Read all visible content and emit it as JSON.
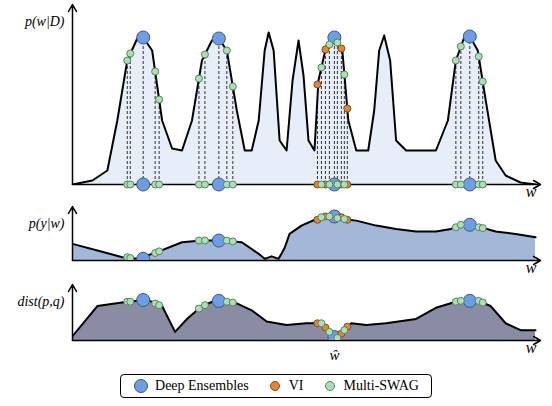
{
  "chart_data": [
    {
      "type": "area",
      "ylabel": "p(w|D)",
      "xlabel": "w",
      "xlim": [
        0,
        470
      ],
      "ylim": [
        0,
        180
      ],
      "tick_labels": false,
      "series": [
        {
          "type": "area",
          "color": "#e8eef9",
          "x": [
            0,
            20,
            35,
            45,
            55,
            65,
            71,
            80,
            90,
            100,
            110,
            120,
            130,
            140,
            147,
            155,
            165,
            173,
            180,
            187,
            193,
            197,
            202,
            208,
            215,
            221,
            227,
            232,
            237,
            243,
            247,
            255,
            263,
            271,
            277,
            285,
            297,
            303,
            308,
            313,
            319,
            325,
            335,
            345,
            365,
            377,
            385,
            393,
            399,
            407,
            415,
            425,
            435,
            450,
            465
          ],
          "values": [
            0,
            4,
            14,
            64,
            124,
            146,
            147,
            134,
            64,
            36,
            34,
            64,
            124,
            144,
            146,
            134,
            74,
            34,
            34,
            64,
            134,
            152,
            134,
            44,
            34,
            104,
            144,
            109,
            44,
            34,
            104,
            139,
            147,
            134,
            64,
            34,
            34,
            74,
            134,
            149,
            124,
            44,
            34,
            34,
            34,
            64,
            124,
            146,
            148,
            134,
            84,
            24,
            9,
            2,
            0
          ]
        },
        {
          "name": "Deep Ensembles",
          "type": "scatter",
          "marker": "circle",
          "color": "#6b9de8",
          "x": [
            71,
            147,
            263,
            399
          ],
          "values": [
            147,
            146,
            147,
            148
          ]
        },
        {
          "name": "VI",
          "type": "scatter",
          "marker": "circle",
          "color": "#e8862e",
          "x": [
            246,
            254,
            270,
            276
          ],
          "values": [
            100,
            135,
            136,
            76
          ]
        },
        {
          "name": "Multi-SWAG",
          "type": "scatter",
          "marker": "circle",
          "color": "#a6e3b0",
          "x": [
            55,
            58,
            83,
            87,
            127,
            133,
            155,
            161,
            250,
            258,
            266,
            273,
            385,
            390,
            408,
            412
          ],
          "values": [
            124,
            131,
            113,
            85,
            106,
            130,
            134,
            98,
            117,
            140,
            142,
            110,
            124,
            138,
            128,
            103
          ]
        }
      ]
    },
    {
      "type": "area",
      "ylabel": "p(y|w)",
      "xlabel": "w",
      "xlim": [
        0,
        470
      ],
      "ylim": [
        0,
        65
      ],
      "tick_labels": false,
      "series": [
        {
          "type": "area",
          "color": "#a3b7d8",
          "x": [
            0,
            25,
            50,
            65,
            85,
            110,
            130,
            150,
            170,
            187,
            193,
            200,
            207,
            213,
            218,
            230,
            245,
            260,
            270,
            285,
            305,
            325,
            345,
            365,
            380,
            395,
            410,
            425,
            445,
            465
          ],
          "values": [
            20,
            12,
            4,
            2,
            10,
            22,
            24,
            24,
            22,
            8,
            2,
            5,
            2,
            15,
            32,
            42,
            50,
            53,
            50,
            48,
            42,
            38,
            35,
            35,
            38,
            45,
            40,
            35,
            32,
            28
          ]
        },
        {
          "name": "Deep Ensembles",
          "type": "scatter",
          "marker": "circle",
          "color": "#6b9de8",
          "x": [
            71,
            147,
            263,
            399
          ],
          "values": [
            2,
            24,
            53,
            43
          ]
        },
        {
          "name": "VI",
          "type": "scatter",
          "marker": "circle",
          "color": "#e8862e",
          "x": [
            246,
            254,
            270,
            276
          ],
          "values": [
            49,
            53,
            52,
            49
          ]
        },
        {
          "name": "Multi-SWAG",
          "type": "scatter",
          "marker": "circle",
          "color": "#a6e3b0",
          "x": [
            55,
            58,
            83,
            87,
            127,
            133,
            155,
            161,
            250,
            258,
            266,
            273,
            385,
            390,
            408,
            412
          ],
          "values": [
            4,
            3,
            9,
            11,
            24,
            24,
            24,
            23,
            52,
            53,
            51,
            50,
            40,
            43,
            40,
            39
          ]
        }
      ]
    },
    {
      "type": "area",
      "ylabel": "dist(p,q)",
      "xlabel": "w",
      "xlim": [
        0,
        470
      ],
      "ylim": [
        0,
        65
      ],
      "tick_labels": false,
      "legend": "bottom",
      "annotations": [
        {
          "text": "ŵ",
          "x": 263
        }
      ],
      "series": [
        {
          "type": "area",
          "color": "#8a8ca3",
          "x": [
            0,
            25,
            55,
            75,
            90,
            103,
            115,
            130,
            145,
            165,
            180,
            195,
            215,
            235,
            250,
            260,
            265,
            270,
            280,
            295,
            315,
            345,
            365,
            385,
            405,
            420,
            435,
            450,
            465
          ],
          "values": [
            5,
            40,
            45,
            47,
            40,
            10,
            25,
            40,
            47,
            43,
            35,
            22,
            18,
            20,
            20,
            8,
            2,
            8,
            20,
            18,
            20,
            25,
            38,
            45,
            47,
            40,
            20,
            12,
            12
          ]
        },
        {
          "name": "Deep Ensembles",
          "type": "scatter",
          "marker": "circle",
          "color": "#6b9de8",
          "x": [
            71,
            147,
            263,
            399
          ],
          "values": [
            47,
            46,
            4,
            46
          ]
        },
        {
          "name": "VI",
          "type": "scatter",
          "marker": "circle",
          "color": "#e8862e",
          "x": [
            246,
            254,
            270,
            276
          ],
          "values": [
            20,
            15,
            8,
            16
          ]
        },
        {
          "name": "Multi-SWAG",
          "type": "scatter",
          "marker": "circle",
          "color": "#a6e3b0",
          "x": [
            55,
            58,
            83,
            87,
            127,
            133,
            155,
            161,
            250,
            258,
            266,
            273,
            385,
            390,
            408,
            412
          ],
          "values": [
            45,
            45,
            43,
            41,
            37,
            41,
            45,
            44,
            20,
            10,
            3,
            12,
            45,
            46,
            46,
            44
          ]
        }
      ]
    }
  ]
}
